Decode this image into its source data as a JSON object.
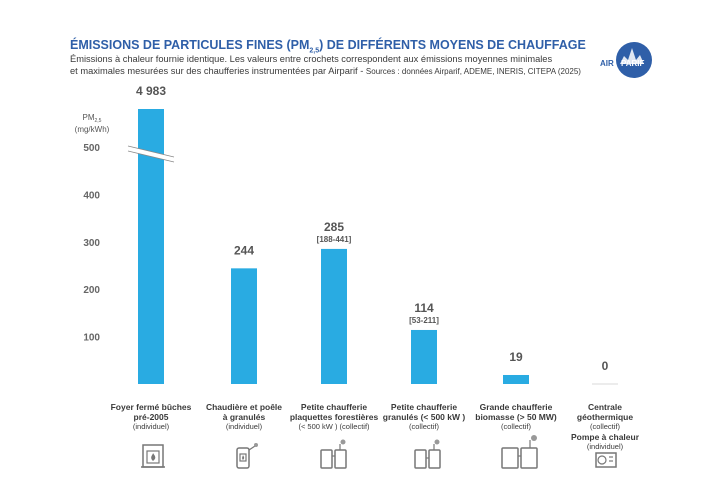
{
  "header": {
    "title_main": "ÉMISSIONS DE PARTICULES FINES (PM",
    "title_sub": "2,5",
    "title_end": ") DE DIFFÉRENTS MOYENS DE CHAUFFAGE",
    "subtitle_line1": "Émissions à chaleur fournie identique. Les valeurs entre crochets correspondent aux émissions moyennes minimales",
    "subtitle_line2": "et maximales mesurées sur des chaufferies instrumentées par Airparif - ",
    "sources": "Sources : données Airparif, ADEME, INERIS, CITEPA (2025)"
  },
  "logo": {
    "left": "AIR",
    "right": "PARIF"
  },
  "chart_data": {
    "type": "bar",
    "ylabel": "PM",
    "ylabel_sub": "2,5",
    "yunit": "(mg/kWh)",
    "ylim": [
      0,
      500
    ],
    "yticks": [
      100,
      200,
      300,
      400,
      500
    ],
    "axis_break": true,
    "bar_color": "#29abe2",
    "categories": [
      {
        "name": "Foyer fermé bûches pré-2005",
        "lines": [
          "Foyer fermé bûches",
          "pré-2005"
        ],
        "sub": [
          "(individuel)"
        ]
      },
      {
        "name": "Chaudière et poêle à granulés",
        "lines": [
          "Chaudière et poêle",
          "à granulés"
        ],
        "sub": [
          "(individuel)"
        ]
      },
      {
        "name": "Petite chaufferie plaquettes forestières",
        "lines": [
          "Petite chaufferie",
          "plaquettes forestières"
        ],
        "sub": [
          "(< 500 kW ) (collectif)"
        ]
      },
      {
        "name": "Petite chaufferie granulés",
        "lines": [
          "Petite chaufferie",
          "granulés (< 500 kW )"
        ],
        "sub": [
          "(collectif)"
        ]
      },
      {
        "name": "Grande chaufferie biomasse",
        "lines": [
          "Grande chaufferie",
          "biomasse (> 50 MW)"
        ],
        "sub": [
          "(collectif)"
        ]
      },
      {
        "name": "Centrale géothermique / Pompe à chaleur",
        "lines": [
          "Centrale",
          "géothermique"
        ],
        "sub": [
          "(collectif)"
        ],
        "lines2": [
          "Pompe à chaleur"
        ],
        "sub2": [
          "(individuel)"
        ]
      }
    ],
    "values": [
      4983,
      244,
      285,
      114,
      19,
      0
    ],
    "value_labels": [
      "4 983",
      "244",
      "285",
      "114",
      "19",
      "0"
    ],
    "ranges": [
      null,
      null,
      "[188-441]",
      "[53-211]",
      null,
      null
    ]
  }
}
